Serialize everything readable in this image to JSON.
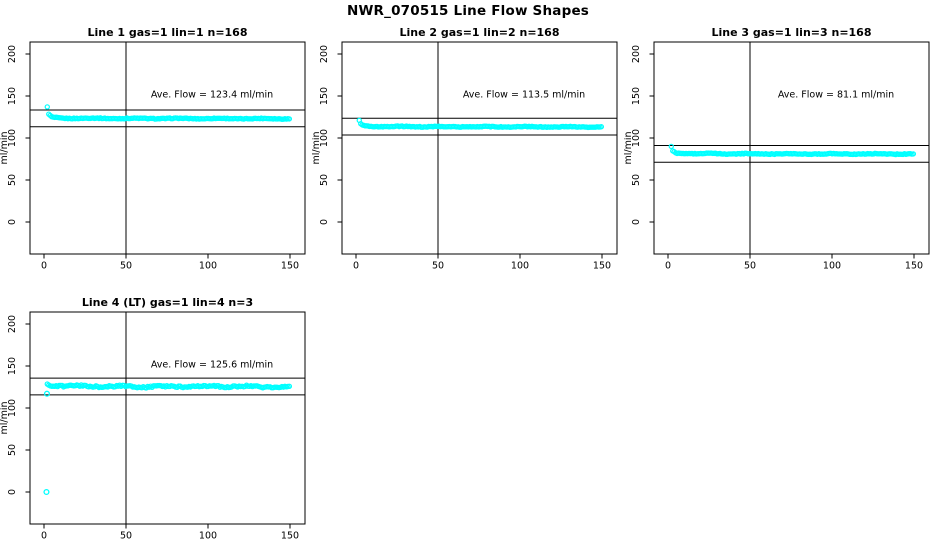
{
  "page": {
    "title": "NWR_070515  Line Flow Shapes"
  },
  "chart_data": [
    {
      "type": "scatter",
      "title": "Line 1 gas=1 lin=1 n=168",
      "annotation": "Ave. Flow =  123.4  ml/min",
      "ave_flow": 123.4,
      "n": 168,
      "ylabel": "ml/min",
      "xticks": [
        0,
        50,
        100,
        150
      ],
      "yticks": [
        0,
        50,
        100,
        150,
        200
      ],
      "xlim": [
        -8,
        159
      ],
      "ylim": [
        -38,
        214
      ],
      "ref_lines": [
        133.4,
        113.4
      ],
      "vline_x": 50,
      "point_color": "#00ffff",
      "noise_amp": 0.8,
      "x_range": [
        2,
        150
      ],
      "x_step": 0.9,
      "profile": [
        [
          2,
          137
        ],
        [
          3,
          127.5
        ],
        [
          5,
          124.5
        ],
        [
          10,
          123.6
        ],
        [
          50,
          123.3
        ],
        [
          100,
          123.2
        ],
        [
          150,
          123.0
        ]
      ],
      "outliers": []
    },
    {
      "type": "scatter",
      "title": "Line 2 gas=1 lin=2 n=168",
      "annotation": "Ave. Flow =  113.5  ml/min",
      "ave_flow": 113.5,
      "n": 168,
      "ylabel": "ml/min",
      "xticks": [
        0,
        50,
        100,
        150
      ],
      "yticks": [
        0,
        50,
        100,
        150,
        200
      ],
      "xlim": [
        -8,
        159
      ],
      "ylim": [
        -38,
        214
      ],
      "ref_lines": [
        123.5,
        103.5
      ],
      "vline_x": 50,
      "point_color": "#00ffff",
      "noise_amp": 0.8,
      "x_range": [
        2,
        150
      ],
      "x_step": 0.9,
      "profile": [
        [
          2,
          121
        ],
        [
          3,
          116
        ],
        [
          5,
          114.3
        ],
        [
          10,
          113.8
        ],
        [
          50,
          113.5
        ],
        [
          100,
          113.4
        ],
        [
          150,
          113.2
        ]
      ],
      "outliers": []
    },
    {
      "type": "scatter",
      "title": "Line 3 gas=1 lin=3 n=168",
      "annotation": "Ave. Flow =  81.1  ml/min",
      "ave_flow": 81.1,
      "n": 168,
      "ylabel": "ml/min",
      "xticks": [
        0,
        50,
        100,
        150
      ],
      "yticks": [
        0,
        50,
        100,
        150,
        200
      ],
      "xlim": [
        -8,
        159
      ],
      "ylim": [
        -38,
        214
      ],
      "ref_lines": [
        91.1,
        71.1
      ],
      "vline_x": 50,
      "point_color": "#00ffff",
      "noise_amp": 0.8,
      "x_range": [
        2,
        150
      ],
      "x_step": 0.9,
      "profile": [
        [
          2,
          90
        ],
        [
          3,
          84
        ],
        [
          5,
          82
        ],
        [
          10,
          81.5
        ],
        [
          50,
          81.2
        ],
        [
          100,
          81.1
        ],
        [
          150,
          81.0
        ]
      ],
      "outliers": []
    },
    {
      "type": "scatter",
      "title": "Line 4 (LT) gas=1 lin=4 n=3",
      "annotation": "Ave. Flow =  125.6  ml/min",
      "ave_flow": 125.6,
      "n": 3,
      "ylabel": "ml/min",
      "xticks": [
        0,
        50,
        100,
        150
      ],
      "yticks": [
        0,
        50,
        100,
        150,
        200
      ],
      "xlim": [
        -8,
        159
      ],
      "ylim": [
        -38,
        214
      ],
      "ref_lines": [
        135.6,
        115.6
      ],
      "vline_x": 50,
      "point_color": "#00ffff",
      "noise_amp": 1.8,
      "x_range": [
        2,
        150
      ],
      "x_step": 0.9,
      "profile": [
        [
          2,
          128.5
        ],
        [
          4,
          127
        ],
        [
          10,
          126.5
        ],
        [
          30,
          126
        ],
        [
          60,
          125.3
        ],
        [
          100,
          125.9
        ],
        [
          150,
          125.1
        ]
      ],
      "outliers": [
        [
          1.5,
          0
        ],
        [
          1.8,
          117
        ]
      ]
    }
  ]
}
